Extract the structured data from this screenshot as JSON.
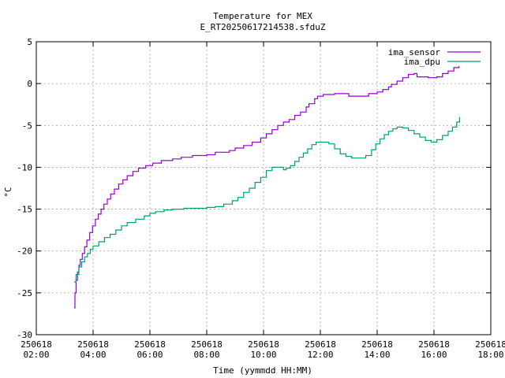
{
  "chart_data": {
    "type": "line",
    "title": "Temperature for MEX",
    "subtitle": "E_RT20250617214538.sfduZ",
    "xlabel": "Time (yymmdd HH:MM)",
    "ylabel": "°C",
    "xlim": [
      2,
      18
    ],
    "ylim": [
      -30,
      5
    ],
    "grid": true,
    "legend_position": "top-right",
    "x_ticks": [
      {
        "x": 2,
        "date": "250618",
        "time": "02:00"
      },
      {
        "x": 4,
        "date": "250618",
        "time": "04:00"
      },
      {
        "x": 6,
        "date": "250618",
        "time": "06:00"
      },
      {
        "x": 8,
        "date": "250618",
        "time": "08:00"
      },
      {
        "x": 10,
        "date": "250618",
        "time": "10:00"
      },
      {
        "x": 12,
        "date": "250618",
        "time": "12:00"
      },
      {
        "x": 14,
        "date": "250618",
        "time": "14:00"
      },
      {
        "x": 16,
        "date": "250618",
        "time": "16:00"
      },
      {
        "x": 18,
        "date": "250618",
        "time": "18:00"
      }
    ],
    "y_ticks": [
      "5",
      "0",
      "-5",
      "-10",
      "-15",
      "-20",
      "-25",
      "-30"
    ],
    "series": [
      {
        "name": "ima_sensor",
        "color": "#9400d3",
        "points": [
          [
            3.33,
            -26.8
          ],
          [
            3.36,
            -25.0
          ],
          [
            3.4,
            -23.5
          ],
          [
            3.45,
            -22.5
          ],
          [
            3.5,
            -21.7
          ],
          [
            3.55,
            -21.0
          ],
          [
            3.62,
            -20.3
          ],
          [
            3.7,
            -19.5
          ],
          [
            3.78,
            -18.7
          ],
          [
            3.88,
            -17.8
          ],
          [
            3.98,
            -17.0
          ],
          [
            4.08,
            -16.2
          ],
          [
            4.18,
            -15.6
          ],
          [
            4.28,
            -15.0
          ],
          [
            4.38,
            -14.4
          ],
          [
            4.5,
            -13.8
          ],
          [
            4.62,
            -13.2
          ],
          [
            4.75,
            -12.6
          ],
          [
            4.9,
            -12.0
          ],
          [
            5.05,
            -11.5
          ],
          [
            5.2,
            -11.0
          ],
          [
            5.4,
            -10.5
          ],
          [
            5.6,
            -10.1
          ],
          [
            5.85,
            -9.8
          ],
          [
            6.1,
            -9.5
          ],
          [
            6.4,
            -9.2
          ],
          [
            6.8,
            -9.0
          ],
          [
            7.1,
            -8.8
          ],
          [
            7.5,
            -8.6
          ],
          [
            8.0,
            -8.5
          ],
          [
            8.3,
            -8.2
          ],
          [
            8.8,
            -8.0
          ],
          [
            9.0,
            -7.7
          ],
          [
            9.3,
            -7.4
          ],
          [
            9.6,
            -7.0
          ],
          [
            9.9,
            -6.5
          ],
          [
            10.1,
            -6.0
          ],
          [
            10.3,
            -5.5
          ],
          [
            10.5,
            -5.0
          ],
          [
            10.7,
            -4.6
          ],
          [
            10.9,
            -4.3
          ],
          [
            11.1,
            -3.8
          ],
          [
            11.3,
            -3.4
          ],
          [
            11.5,
            -2.8
          ],
          [
            11.6,
            -2.4
          ],
          [
            11.8,
            -1.8
          ],
          [
            11.9,
            -1.5
          ],
          [
            12.1,
            -1.3
          ],
          [
            12.5,
            -1.2
          ],
          [
            12.9,
            -1.2
          ],
          [
            13.0,
            -1.5
          ],
          [
            13.4,
            -1.5
          ],
          [
            13.7,
            -1.2
          ],
          [
            14.0,
            -1.0
          ],
          [
            14.2,
            -0.7
          ],
          [
            14.4,
            -0.4
          ],
          [
            14.5,
            -0.1
          ],
          [
            14.7,
            0.3
          ],
          [
            14.9,
            0.7
          ],
          [
            15.1,
            1.1
          ],
          [
            15.3,
            1.2
          ],
          [
            15.4,
            0.8
          ],
          [
            15.8,
            0.7
          ],
          [
            16.1,
            0.8
          ],
          [
            16.3,
            1.2
          ],
          [
            16.5,
            1.5
          ],
          [
            16.7,
            1.9
          ],
          [
            16.88,
            2.1
          ]
        ]
      },
      {
        "name": "ima_dpu",
        "color": "#009e73",
        "points": [
          [
            3.33,
            -23.7
          ],
          [
            3.4,
            -22.8
          ],
          [
            3.5,
            -21.9
          ],
          [
            3.6,
            -21.3
          ],
          [
            3.7,
            -20.7
          ],
          [
            3.8,
            -20.3
          ],
          [
            3.9,
            -19.8
          ],
          [
            4.0,
            -19.4
          ],
          [
            4.2,
            -18.9
          ],
          [
            4.4,
            -18.4
          ],
          [
            4.6,
            -18.0
          ],
          [
            4.8,
            -17.5
          ],
          [
            5.0,
            -17.0
          ],
          [
            5.2,
            -16.6
          ],
          [
            5.5,
            -16.2
          ],
          [
            5.8,
            -15.8
          ],
          [
            6.0,
            -15.5
          ],
          [
            6.2,
            -15.3
          ],
          [
            6.5,
            -15.1
          ],
          [
            6.8,
            -15.0
          ],
          [
            7.2,
            -14.9
          ],
          [
            7.6,
            -14.9
          ],
          [
            8.0,
            -14.8
          ],
          [
            8.3,
            -14.7
          ],
          [
            8.6,
            -14.4
          ],
          [
            8.9,
            -14.0
          ],
          [
            9.1,
            -13.6
          ],
          [
            9.3,
            -13.0
          ],
          [
            9.5,
            -12.5
          ],
          [
            9.7,
            -11.8
          ],
          [
            9.9,
            -11.2
          ],
          [
            10.1,
            -10.4
          ],
          [
            10.3,
            -10.0
          ],
          [
            10.5,
            -10.0
          ],
          [
            10.7,
            -10.3
          ],
          [
            10.8,
            -10.1
          ],
          [
            10.95,
            -9.8
          ],
          [
            11.1,
            -9.3
          ],
          [
            11.25,
            -8.8
          ],
          [
            11.4,
            -8.3
          ],
          [
            11.55,
            -7.8
          ],
          [
            11.7,
            -7.3
          ],
          [
            11.85,
            -7.0
          ],
          [
            12.1,
            -7.0
          ],
          [
            12.3,
            -7.2
          ],
          [
            12.5,
            -7.8
          ],
          [
            12.7,
            -8.4
          ],
          [
            12.9,
            -8.7
          ],
          [
            13.1,
            -8.9
          ],
          [
            13.4,
            -8.9
          ],
          [
            13.6,
            -8.6
          ],
          [
            13.8,
            -7.9
          ],
          [
            13.95,
            -7.2
          ],
          [
            14.1,
            -6.6
          ],
          [
            14.25,
            -6.1
          ],
          [
            14.4,
            -5.7
          ],
          [
            14.55,
            -5.4
          ],
          [
            14.7,
            -5.2
          ],
          [
            14.9,
            -5.3
          ],
          [
            15.1,
            -5.6
          ],
          [
            15.3,
            -6.0
          ],
          [
            15.5,
            -6.4
          ],
          [
            15.7,
            -6.8
          ],
          [
            15.9,
            -7.0
          ],
          [
            16.1,
            -6.7
          ],
          [
            16.3,
            -6.2
          ],
          [
            16.5,
            -5.7
          ],
          [
            16.65,
            -5.2
          ],
          [
            16.8,
            -4.6
          ],
          [
            16.9,
            -4.0
          ]
        ]
      }
    ]
  }
}
